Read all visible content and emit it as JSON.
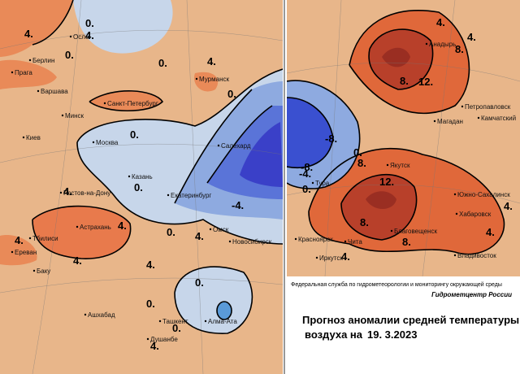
{
  "left_map": {
    "cities": [
      "Осло",
      "Берлин",
      "Прага",
      "Варшава",
      "Мурманск",
      "Санкт-Петербург",
      "Минск",
      "Киев",
      "Москва",
      "Салехард",
      "Казань",
      "Екатеринбург",
      "Ростов-на-Дону",
      "Астрахань",
      "Тбилиси",
      "Ереван",
      "Омск",
      "Новосибирск",
      "Баку",
      "Ашхабад",
      "Ташкент",
      "Алма-Ата",
      "Душанбе"
    ],
    "isolines": [
      "4.",
      "0.",
      "0.",
      "0.",
      "4.",
      "0.",
      "0.",
      "-4.",
      "4.",
      "0.",
      "4.",
      "4.",
      "4.",
      "4.",
      "0.",
      "0.",
      "4.",
      "0.",
      "0.",
      "4.",
      "4."
    ]
  },
  "right_map": {
    "cities": [
      "Анадырь",
      "Петропавловск",
      "Магадан",
      "Камчатский",
      "Якутск",
      "Тура",
      "Южно-Сахалинск",
      "Хабаровск",
      "Благовещенск",
      "Красноярск",
      "Чита",
      "Иркутск",
      "Владивосток"
    ],
    "isolines": [
      "4.",
      "8.",
      "12.",
      "8.",
      "-8.",
      "-8.",
      "-4.",
      "0.",
      "8.",
      "12.",
      "8.",
      "8.",
      "4.",
      "4.",
      "4.",
      "0.",
      "4."
    ]
  },
  "footer": {
    "agency": "Федеральная служба по гидрометеорологии и мониторингу окружающей среды",
    "center": "Гидрометцентр России",
    "title_line1": "Прогноз аномалии средней температуры",
    "title_line2": "воздуха на",
    "date": "19. 3.2023"
  }
}
